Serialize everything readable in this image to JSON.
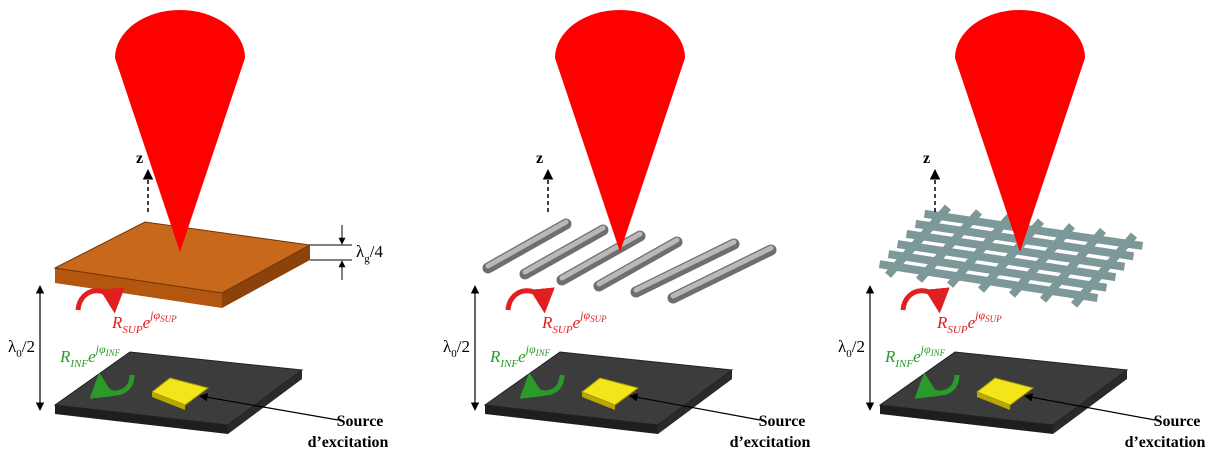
{
  "panels": [
    {
      "axis_label": "z",
      "thickness_label": {
        "symbol": "λ",
        "sub": "g",
        "rest": "/4"
      },
      "height_label": {
        "symbol": "λ",
        "sub": "0",
        "rest": "/2"
      },
      "reflection_sup": {
        "base": "R",
        "sub": "SUP",
        "e": "e",
        "exp": "jφ",
        "exp_sub": "SUP"
      },
      "reflection_inf": {
        "base": "R",
        "sub": "INF",
        "e": "e",
        "exp": "jφ",
        "exp_sub": "INF"
      },
      "source_label": [
        "Source",
        "d’excitation"
      ]
    },
    {
      "axis_label": "z",
      "height_label": {
        "symbol": "λ",
        "sub": "0",
        "rest": "/2"
      },
      "reflection_sup": {
        "base": "R",
        "sub": "SUP",
        "e": "e",
        "exp": "jφ",
        "exp_sub": "SUP"
      },
      "reflection_inf": {
        "base": "R",
        "sub": "INF",
        "e": "e",
        "exp": "jφ",
        "exp_sub": "INF"
      },
      "source_label": [
        "Source",
        "d’excitation"
      ]
    },
    {
      "axis_label": "z",
      "height_label": {
        "symbol": "λ",
        "sub": "0",
        "rest": "/2"
      },
      "reflection_sup": {
        "base": "R",
        "sub": "SUP",
        "e": "e",
        "exp": "jφ",
        "exp_sub": "SUP"
      },
      "reflection_inf": {
        "base": "R",
        "sub": "INF",
        "e": "e",
        "exp": "jφ",
        "exp_sub": "INF"
      },
      "source_label": [
        "Source",
        "d’excitation"
      ]
    }
  ]
}
